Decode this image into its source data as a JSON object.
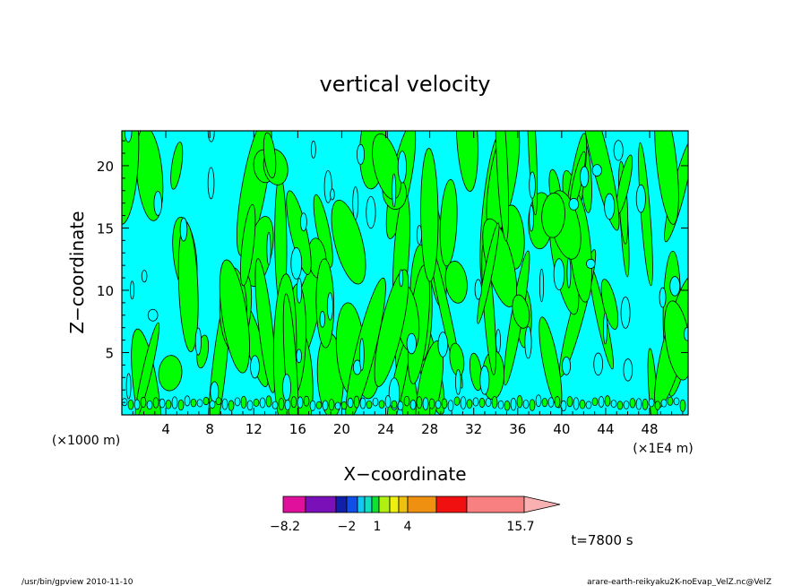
{
  "chart_data": {
    "type": "heatmap",
    "title": "vertical velocity",
    "xlabel": "X−coordinate",
    "ylabel": "Z−coordinate",
    "x_ticks": [
      4,
      8,
      12,
      16,
      20,
      24,
      28,
      32,
      36,
      40,
      44,
      48
    ],
    "y_ticks": [
      5,
      10,
      15,
      20
    ],
    "x_unit_left": "(×1000 m)",
    "x_unit_right": "(×1E4 m)",
    "xlim": [
      0,
      51.5
    ],
    "ylim": [
      0,
      22.8
    ],
    "colorbar": {
      "colors": [
        "#e0109c",
        "#7a10b8",
        "#1020a8",
        "#1050e8",
        "#10c8f0",
        "#10e0c0",
        "#10e030",
        "#b0f010",
        "#f0f010",
        "#f0c010",
        "#f09010",
        "#f06810",
        "#f01010",
        "#f88080",
        "#f8b0b0"
      ],
      "label_values": [
        "−8.2",
        "−2",
        "1",
        "4",
        "15.7"
      ]
    },
    "field_colors": {
      "upward": "#00ff00",
      "downward": "#00ffff",
      "contour": "#000000"
    },
    "time_label": "t=7800 s"
  },
  "footer": {
    "left": "/usr/bin/gpview   2010-11-10",
    "right": "arare-earth-reikyaku2K-noEvap_VelZ.nc@VelZ"
  }
}
